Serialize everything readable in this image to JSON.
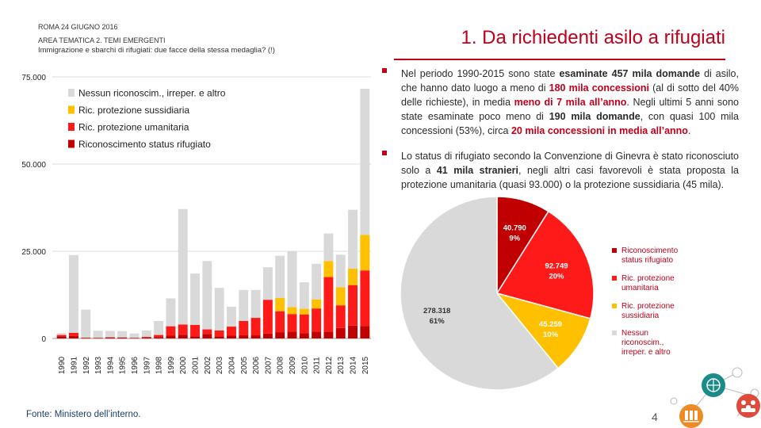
{
  "header": {
    "line1": "ROMA 24 GIUGNO 2016",
    "line2": "AREA TEMATICA 2. TEMI EMERGENTI",
    "line3": "Immigrazione e sbarchi di rifugiati: due facce della stessa medaglia? (!)"
  },
  "title": "1. Da richiedenti asilo a rifugiati",
  "bullets": [
    [
      {
        "t": "Nel periodo 1990-2015 sono state "
      },
      {
        "t": "esaminate 457 mila domande",
        "b": true
      },
      {
        "t": " di asilo, che hanno dato luogo a meno di "
      },
      {
        "t": "180 mila concessioni",
        "b": true,
        "r": true
      },
      {
        "t": " (al di sotto del 40% delle richieste), in media "
      },
      {
        "t": "meno di 7 mila all’anno",
        "b": true,
        "r": true
      },
      {
        "t": ". Negli ultimi 5 anni sono state esaminate poco meno di "
      },
      {
        "t": "190 mila domande",
        "b": true
      },
      {
        "t": ", con quasi 100 mila concessioni (53%), circa "
      },
      {
        "t": "20 mila concessioni in media all’anno",
        "b": true,
        "r": true
      },
      {
        "t": "."
      }
    ],
    [
      {
        "t": "Lo status di rifugiato secondo la Convenzione di Ginevra è stato riconosciuto solo a "
      },
      {
        "t": "41 mila stranieri",
        "b": true
      },
      {
        "t": ", negli altri casi favorevoli è stata proposta la protezione umanitaria (quasi 93.000) o la protezione sussidiaria (45 mila)."
      }
    ]
  ],
  "source": "Fonte: Ministero dell’interno.",
  "page_number": "4",
  "colors": {
    "refugee": "#c00000",
    "humanitarian": "#ff1a1a",
    "subsidiary": "#ffc000",
    "none": "#d9d9d9",
    "accent": "#c0001a"
  },
  "chart_data": [
    {
      "type": "bar",
      "stacked": true,
      "categories": [
        "1990",
        "1991",
        "1992",
        "1993",
        "1994",
        "1995",
        "1996",
        "1997",
        "1998",
        "1999",
        "2000",
        "2001",
        "2002",
        "2003",
        "2004",
        "2005",
        "2006",
        "2007",
        "2008",
        "2009",
        "2010",
        "2011",
        "2012",
        "2013",
        "2014",
        "2015"
      ],
      "yticks": [
        0,
        25000,
        50000,
        75000
      ],
      "ytick_labels": [
        "0",
        "25.000",
        "50.000",
        "75.000"
      ],
      "ylim": [
        0,
        75000
      ],
      "legend_position": "top-left",
      "series": [
        {
          "name": "Riconoscimento status rifugiato",
          "values": [
            600,
            700,
            150,
            150,
            300,
            250,
            150,
            250,
            400,
            800,
            1100,
            600,
            1300,
            600,
            800,
            900,
            900,
            1400,
            1800,
            2000,
            1500,
            2000,
            2000,
            3000,
            3700,
            3600
          ]
        },
        {
          "name": "Ric. protezione umanitaria",
          "values": [
            400,
            900,
            100,
            50,
            50,
            50,
            50,
            200,
            600,
            2700,
            2900,
            3300,
            1300,
            1700,
            2600,
            4100,
            5000,
            9700,
            6000,
            5000,
            5400,
            6600,
            15600,
            6500,
            11600,
            15900
          ]
        },
        {
          "name": "Ric. protezione sussidiaria",
          "values": [
            0,
            0,
            0,
            0,
            0,
            0,
            0,
            0,
            0,
            0,
            0,
            0,
            0,
            0,
            0,
            0,
            0,
            0,
            3800,
            2000,
            1600,
            2600,
            4600,
            5200,
            4700,
            10200
          ]
        },
        {
          "name": "Nessun riconoscim., irreper. e altro",
          "values": [
            500,
            22300,
            8000,
            2000,
            1800,
            1800,
            1200,
            1800,
            4000,
            8000,
            33100,
            14700,
            19600,
            12200,
            5700,
            8900,
            8000,
            9300,
            12100,
            15900,
            7600,
            10200,
            7900,
            9300,
            16900,
            41900
          ]
        }
      ]
    },
    {
      "type": "pie",
      "legend_position": "right",
      "slices": [
        {
          "name": "Riconoscimento status rifugiato",
          "value": 40790,
          "value_label": "40.790",
          "pct_label": "9%"
        },
        {
          "name": "Ric. protezione umanitaria",
          "value": 92749,
          "value_label": "92.749",
          "pct_label": "20%"
        },
        {
          "name": "Ric. protezione sussidiaria",
          "value": 45259,
          "value_label": "45.259",
          "pct_label": "10%"
        },
        {
          "name": "Nessun riconoscim., irreper. e altro",
          "value": 278318,
          "value_label": "278.318",
          "pct_label": "61%"
        }
      ]
    }
  ],
  "footer_icons": [
    "globe-people-icon",
    "community-people-icon",
    "library-books-icon"
  ]
}
